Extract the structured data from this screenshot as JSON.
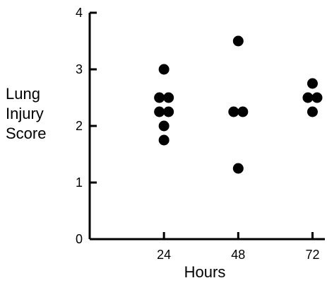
{
  "chart_data": {
    "type": "scatter",
    "title": "",
    "xlabel": "Hours",
    "ylabel_lines": [
      "Lung",
      "Injury",
      "Score"
    ],
    "ylim": [
      0,
      4
    ],
    "yticks": [
      0,
      1,
      2,
      3,
      4
    ],
    "xticks": [
      24,
      48,
      72
    ],
    "xlim": [
      0,
      76
    ],
    "points": [
      {
        "x": 24,
        "y": 3.0
      },
      {
        "x": 24,
        "y": 2.5
      },
      {
        "x": 24,
        "y": 2.5
      },
      {
        "x": 24,
        "y": 2.25
      },
      {
        "x": 24,
        "y": 2.25
      },
      {
        "x": 24,
        "y": 2.0
      },
      {
        "x": 24,
        "y": 1.75
      },
      {
        "x": 48,
        "y": 3.5
      },
      {
        "x": 48,
        "y": 2.25
      },
      {
        "x": 48,
        "y": 2.25
      },
      {
        "x": 48,
        "y": 1.25
      },
      {
        "x": 72,
        "y": 2.75
      },
      {
        "x": 72,
        "y": 2.5
      },
      {
        "x": 72,
        "y": 2.5
      },
      {
        "x": 72,
        "y": 2.25
      }
    ],
    "grid": false,
    "marker_color": "#000000"
  }
}
